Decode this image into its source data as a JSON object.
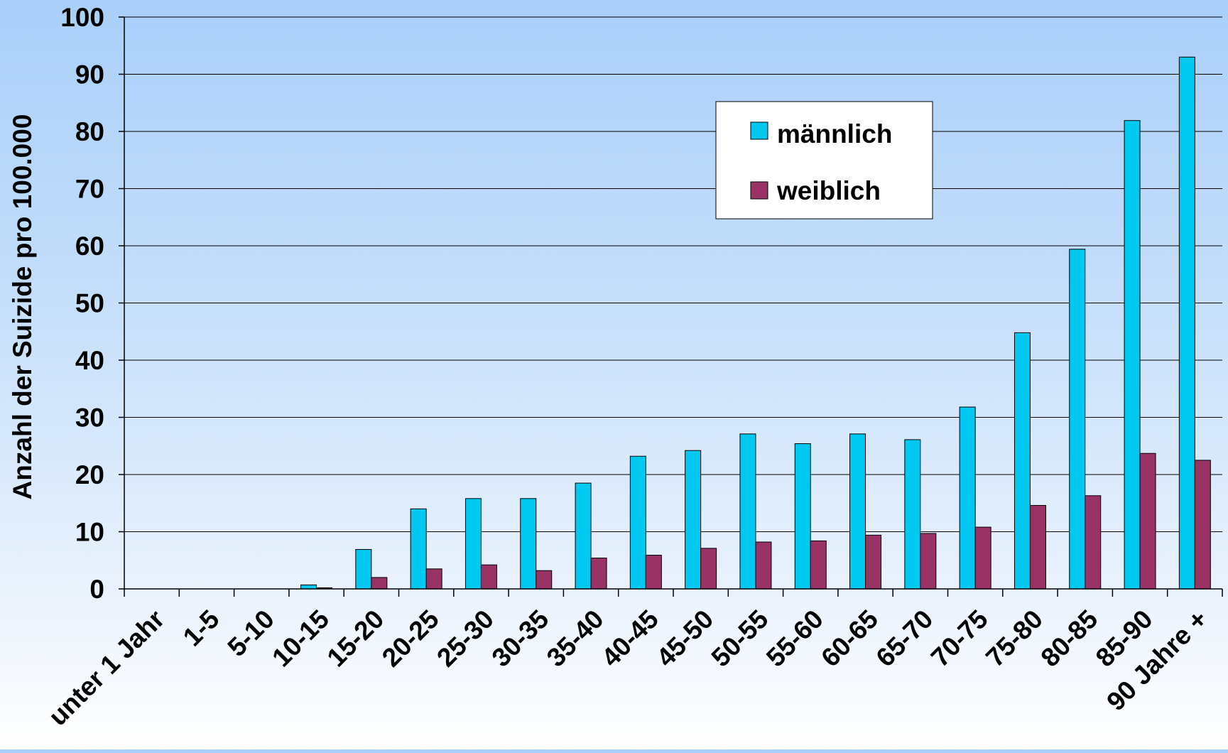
{
  "colors": {
    "series_maennlich": "#00c8f0",
    "series_weiblich": "#993366",
    "grid": "#000000",
    "legend_background": "#ffffff"
  },
  "chart_data": {
    "type": "bar",
    "title": "",
    "xlabel": "",
    "ylabel": "Anzahl der Suizide pro 100.000",
    "ylim": [
      0,
      100
    ],
    "yticks": [
      0,
      10,
      20,
      30,
      40,
      50,
      60,
      70,
      80,
      90,
      100
    ],
    "grid": true,
    "legend_position": "top-right",
    "categories": [
      "unter 1 Jahr",
      "1-5",
      "5-10",
      "10-15",
      "15-20",
      "20-25",
      "25-30",
      "30-35",
      "35-40",
      "40-45",
      "45-50",
      "50-55",
      "55-60",
      "60-65",
      "65-70",
      "70-75",
      "75-80",
      "80-85",
      "85-90",
      "90 Jahre +"
    ],
    "series": [
      {
        "name": "männlich",
        "values": [
          0,
          0,
          0,
          0.7,
          6.9,
          14.0,
          15.8,
          15.8,
          18.5,
          23.2,
          24.2,
          27.1,
          25.4,
          27.1,
          26.1,
          31.8,
          44.8,
          59.4,
          81.9,
          93.0
        ]
      },
      {
        "name": "weiblich",
        "values": [
          0,
          0,
          0,
          0.2,
          2.0,
          3.5,
          4.2,
          3.2,
          5.4,
          5.9,
          7.1,
          8.2,
          8.4,
          9.4,
          9.7,
          10.8,
          14.6,
          16.3,
          23.7,
          22.5
        ]
      }
    ]
  }
}
